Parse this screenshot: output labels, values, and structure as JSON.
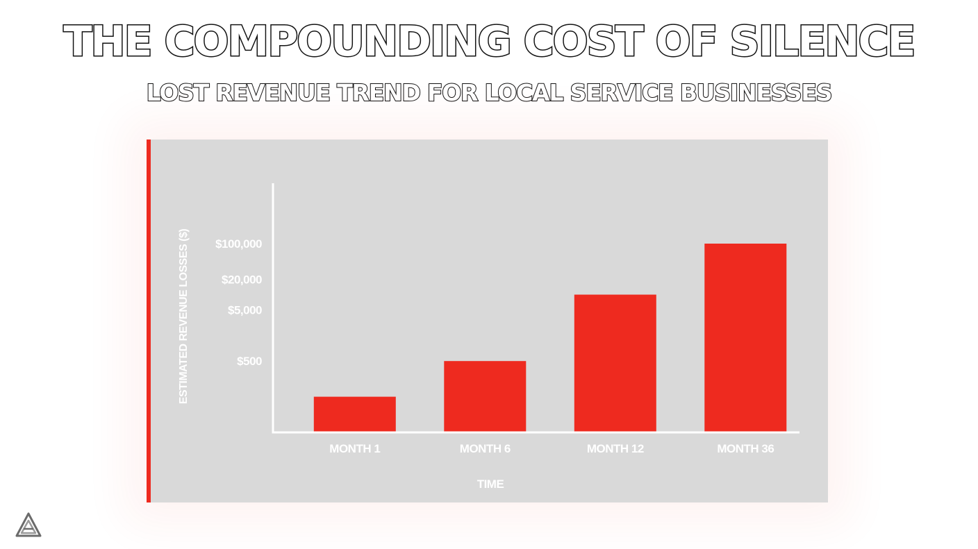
{
  "header": {
    "title": "THE COMPOUNDING COST OF SILENCE",
    "subtitle": "LOST REVENUE TREND FOR LOCAL SERVICE BUSINESSES"
  },
  "colors": {
    "accent": "#ee2a1f",
    "panel": "#d9d9d9",
    "text": "#ffffff",
    "outline": "#111111"
  },
  "chart_data": {
    "type": "bar",
    "title": "THE COMPOUNDING COST OF SILENCE",
    "subtitle": "LOST REVENUE TREND FOR LOCAL SERVICE BUSINESSES",
    "xlabel": "TIME",
    "ylabel": "ESTIMATED REVENUE LOSSES ($)",
    "categories": [
      "MONTH 1",
      "MONTH 6",
      "MONTH 12",
      "MONTH 36"
    ],
    "values": [
      100,
      500,
      10000,
      100000
    ],
    "y_scale": "log",
    "y_ticks": [
      {
        "value": 500,
        "label": "$500"
      },
      {
        "value": 5000,
        "label": "$5,000"
      },
      {
        "value": 20000,
        "label": "$20,000"
      },
      {
        "value": 100000,
        "label": "$100,000"
      }
    ],
    "grid": false,
    "legend": "none",
    "bar_color": "#ee2a1f"
  }
}
